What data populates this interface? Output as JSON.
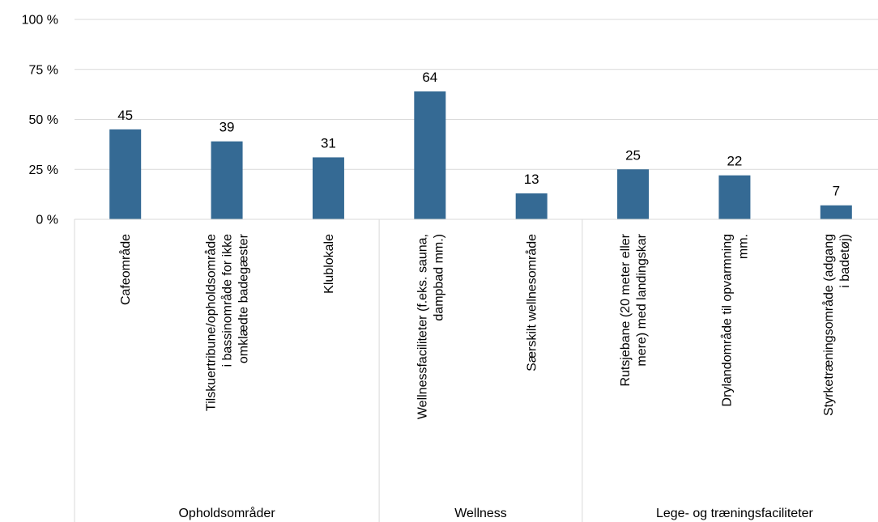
{
  "chart_data": {
    "type": "bar",
    "title": "",
    "xlabel": "",
    "ylabel": "",
    "ylim": [
      0,
      100
    ],
    "y_ticks": [
      {
        "value": 0,
        "label": "0 %"
      },
      {
        "value": 25,
        "label": "25 %"
      },
      {
        "value": 50,
        "label": "50 %"
      },
      {
        "value": 75,
        "label": "75 %"
      },
      {
        "value": 100,
        "label": "100 %"
      }
    ],
    "grid": true,
    "legend": "none",
    "bar_color": "#356a94",
    "grid_color": "#d9d9d9",
    "categories": [
      {
        "lines": [
          "Cafeområde"
        ],
        "group": 0
      },
      {
        "lines": [
          "Tilskuertribune/opholdsområde",
          "i bassinområde for ikke",
          "omklædte badegæster"
        ],
        "group": 0
      },
      {
        "lines": [
          "Klublokale"
        ],
        "group": 0
      },
      {
        "lines": [
          "Wellnessfaciliteter (f.eks. sauna,",
          "dampbad mm.)"
        ],
        "group": 1
      },
      {
        "lines": [
          "Særskilt wellnesområde"
        ],
        "group": 1
      },
      {
        "lines": [
          "Rutsjebane (20 meter eller",
          "mere) med landingskar"
        ],
        "group": 2
      },
      {
        "lines": [
          "Drylandområde til opvarmning",
          "mm."
        ],
        "group": 2
      },
      {
        "lines": [
          "Styrketræningsområde (adgang",
          "i badetøj)"
        ],
        "group": 2
      }
    ],
    "values": [
      45,
      39,
      31,
      64,
      13,
      25,
      22,
      7
    ],
    "data_labels": [
      "45",
      "39",
      "31",
      "64",
      "13",
      "25",
      "22",
      "7"
    ],
    "groups": [
      "Opholdsområder",
      "Wellness",
      "Lege- og træningsfaciliteter"
    ]
  }
}
